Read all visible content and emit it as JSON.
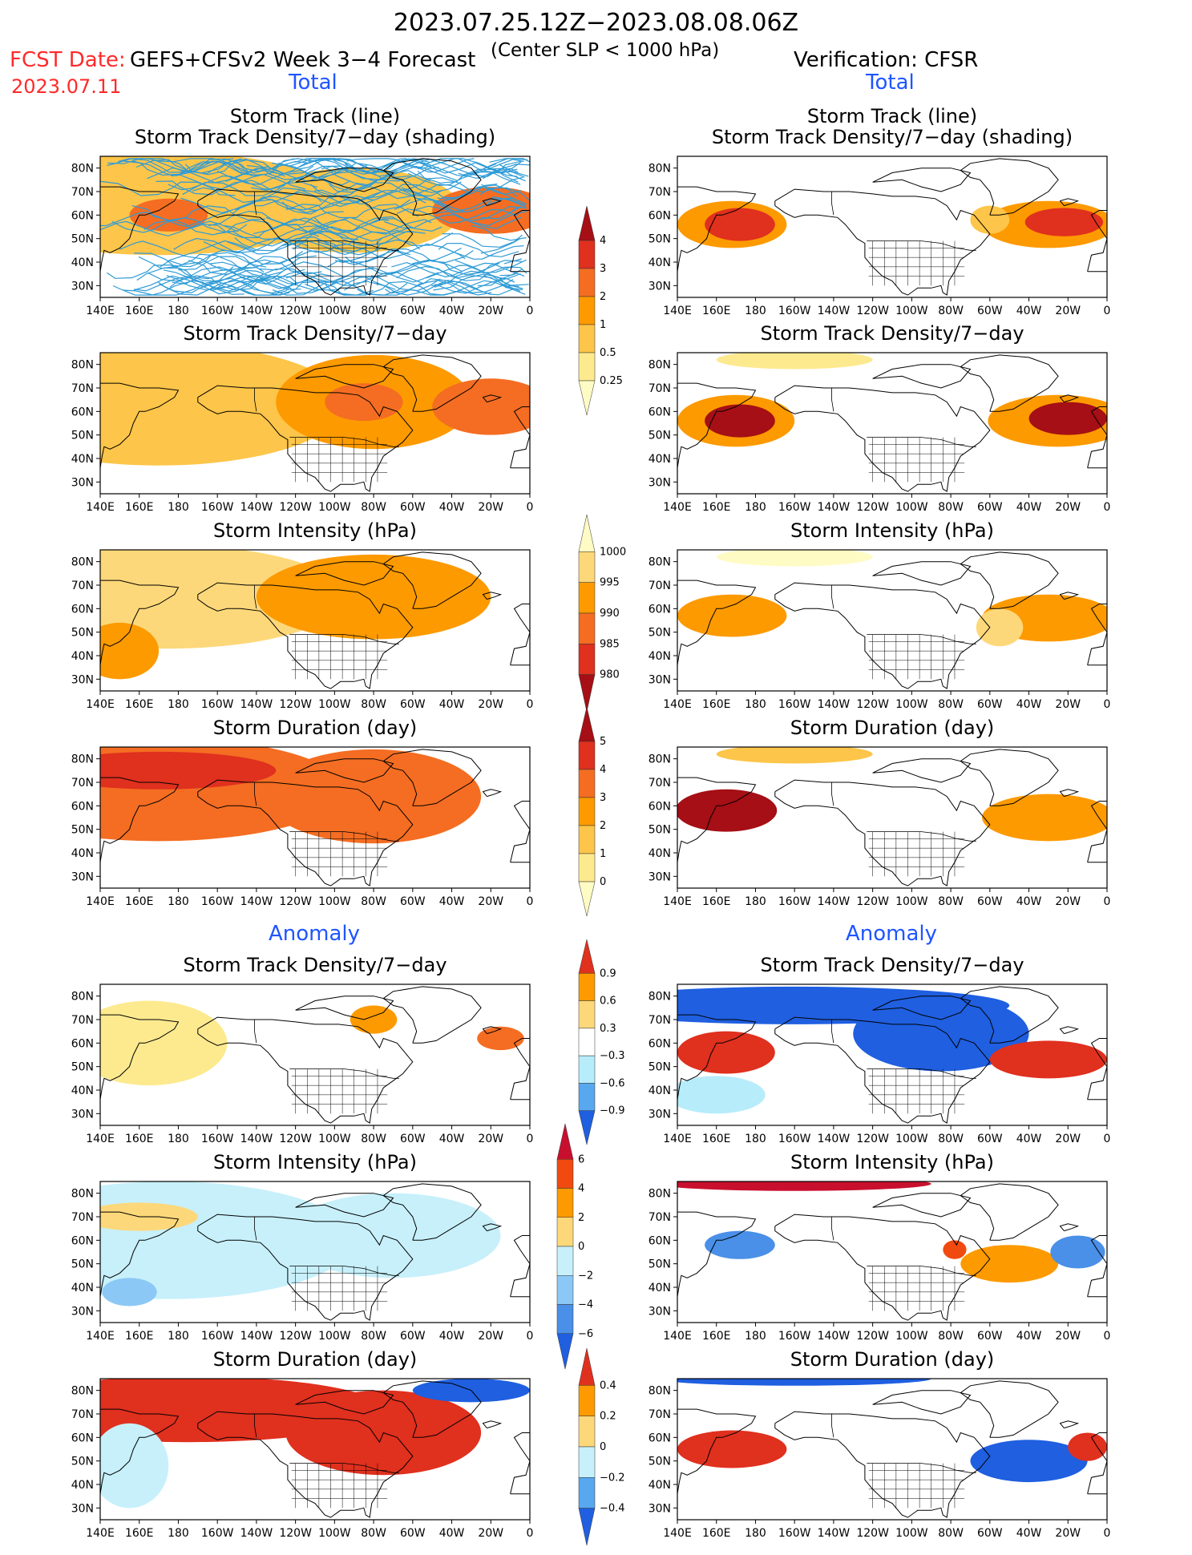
{
  "header": {
    "title": "2023.07.25.12Z−2023.08.08.06Z",
    "subtitle": "(Center SLP < 1000 hPa)",
    "fcst_label": "FCST Date:",
    "fcst_model": "GEFS+CFSv2 Week 3−4 Forecast",
    "fcst_date": "2023.07.11",
    "verification": "Verification: CFSR"
  },
  "sections": {
    "total": "Total",
    "anomaly": "Anomaly"
  },
  "axes": {
    "lon_labels": [
      "140E",
      "160E",
      "180",
      "160W",
      "140W",
      "120W",
      "100W",
      "80W",
      "60W",
      "40W",
      "20W",
      "0"
    ],
    "lat_labels": [
      "80N",
      "70N",
      "60N",
      "50N",
      "40N",
      "30N"
    ]
  },
  "colors": {
    "ocean": "#ffffff",
    "land_line": "#000000",
    "track_line": "#2e9bd6"
  },
  "colorbars": [
    {
      "id": "density-total",
      "labels": [
        "4",
        "3",
        "2",
        "1",
        "0.5",
        "0.25"
      ],
      "colors": [
        "#a50f15",
        "#e0301e",
        "#f46d22",
        "#fd9a00",
        "#fdc549",
        "#fdea8f",
        "#fffbc4"
      ]
    },
    {
      "id": "intensity-total",
      "labels": [
        "1000",
        "995",
        "990",
        "985",
        "980"
      ],
      "colors": [
        "#fffbc4",
        "#fdd87a",
        "#fd9a00",
        "#f46d22",
        "#e0301e",
        "#a50f15"
      ]
    },
    {
      "id": "duration-total",
      "labels": [
        "5",
        "4",
        "3",
        "2",
        "1",
        "0"
      ],
      "colors": [
        "#a50f15",
        "#e0301e",
        "#f46d22",
        "#fd9a00",
        "#fdc549",
        "#fdea8f",
        "#fffbc4"
      ]
    },
    {
      "id": "density-anom",
      "labels": [
        "0.9",
        "0.6",
        "0.3",
        "−0.3",
        "−0.6",
        "−0.9"
      ],
      "colors": [
        "#e0301e",
        "#fd9a00",
        "#fdd87a",
        "#ffffff",
        "#b7ecfb",
        "#58a8f0",
        "#1f5fe0"
      ]
    },
    {
      "id": "intensity-anom",
      "labels": [
        "6",
        "4",
        "2",
        "0",
        "−2",
        "−4",
        "−6"
      ],
      "colors": [
        "#c8102e",
        "#f04a10",
        "#fd9a00",
        "#fdd87a",
        "#c7f0fb",
        "#8cc8f5",
        "#4a8fe8",
        "#1f5fe0"
      ]
    },
    {
      "id": "duration-anom",
      "labels": [
        "0.4",
        "0.2",
        "0",
        "−0.2",
        "−0.4"
      ],
      "colors": [
        "#e0301e",
        "#fd9a00",
        "#fdd87a",
        "#c7f0fb",
        "#58a8f0",
        "#1f5fe0"
      ]
    }
  ],
  "panels": [
    {
      "id": "l1",
      "col": "left",
      "row": 1,
      "title1": "Storm Track (line)",
      "title2": "Storm Track Density/7−day (shading)",
      "tracks": true,
      "blobs": [
        {
          "lon": 170,
          "lat": 65,
          "rx": 95,
          "ry": 22,
          "c": "#fdc549"
        },
        {
          "lon": 270,
          "lat": 62,
          "rx": 55,
          "ry": 18,
          "c": "#fdc549"
        },
        {
          "lon": 340,
          "lat": 62,
          "rx": 30,
          "ry": 10,
          "c": "#f46d22"
        },
        {
          "lon": 175,
          "lat": 60,
          "rx": 20,
          "ry": 7,
          "c": "#f46d22"
        }
      ]
    },
    {
      "id": "r1",
      "col": "right",
      "row": 1,
      "title1": "Storm Track (line)",
      "title2": "Storm Track Density/7−day (shading)",
      "tracks": false,
      "blobs": [
        {
          "lon": 168,
          "lat": 56,
          "rx": 28,
          "ry": 10,
          "c": "#fd9a00"
        },
        {
          "lon": 172,
          "lat": 56,
          "rx": 18,
          "ry": 7,
          "c": "#e0301e"
        },
        {
          "lon": 330,
          "lat": 56,
          "rx": 34,
          "ry": 10,
          "c": "#fd9a00"
        },
        {
          "lon": 338,
          "lat": 57,
          "rx": 20,
          "ry": 6,
          "c": "#e0301e"
        },
        {
          "lon": 300,
          "lat": 58,
          "rx": 10,
          "ry": 6,
          "c": "#fdc549"
        }
      ]
    },
    {
      "id": "l2",
      "col": "left",
      "row": 2,
      "title1": "",
      "title2": "Storm Track Density/7−day",
      "tracks": false,
      "blobs": [
        {
          "lon": 170,
          "lat": 63,
          "rx": 95,
          "ry": 26,
          "c": "#fdc549"
        },
        {
          "lon": 280,
          "lat": 64,
          "rx": 50,
          "ry": 20,
          "c": "#fd9a00"
        },
        {
          "lon": 340,
          "lat": 62,
          "rx": 30,
          "ry": 12,
          "c": "#f46d22"
        },
        {
          "lon": 275,
          "lat": 64,
          "rx": 20,
          "ry": 8,
          "c": "#f46d22"
        }
      ]
    },
    {
      "id": "r2",
      "col": "right",
      "row": 2,
      "title1": "",
      "title2": "Storm Track Density/7−day",
      "tracks": false,
      "blobs": [
        {
          "lon": 170,
          "lat": 56,
          "rx": 30,
          "ry": 11,
          "c": "#fd9a00"
        },
        {
          "lon": 172,
          "lat": 56,
          "rx": 18,
          "ry": 7,
          "c": "#a50f15"
        },
        {
          "lon": 335,
          "lat": 56,
          "rx": 36,
          "ry": 11,
          "c": "#fd9a00"
        },
        {
          "lon": 340,
          "lat": 57,
          "rx": 20,
          "ry": 7,
          "c": "#a50f15"
        },
        {
          "lon": 200,
          "lat": 82,
          "rx": 40,
          "ry": 4,
          "c": "#fdea8f"
        }
      ]
    },
    {
      "id": "l3",
      "col": "left",
      "row": 3,
      "title1": "",
      "title2": "Storm Intensity (hPa)",
      "tracks": false,
      "blobs": [
        {
          "lon": 175,
          "lat": 65,
          "rx": 90,
          "ry": 22,
          "c": "#fdd87a"
        },
        {
          "lon": 280,
          "lat": 65,
          "rx": 60,
          "ry": 18,
          "c": "#fd9a00"
        },
        {
          "lon": 150,
          "lat": 42,
          "rx": 20,
          "ry": 12,
          "c": "#fd9a00"
        }
      ]
    },
    {
      "id": "r3",
      "col": "right",
      "row": 3,
      "title1": "",
      "title2": "Storm Intensity (hPa)",
      "tracks": false,
      "blobs": [
        {
          "lon": 168,
          "lat": 57,
          "rx": 28,
          "ry": 9,
          "c": "#fd9a00"
        },
        {
          "lon": 330,
          "lat": 56,
          "rx": 34,
          "ry": 10,
          "c": "#fd9a00"
        },
        {
          "lon": 305,
          "lat": 52,
          "rx": 12,
          "ry": 8,
          "c": "#fdd87a"
        },
        {
          "lon": 200,
          "lat": 82,
          "rx": 40,
          "ry": 4,
          "c": "#fffbc4"
        }
      ]
    },
    {
      "id": "l4",
      "col": "left",
      "row": 4,
      "title1": "",
      "title2": "Storm Duration (day)",
      "tracks": false,
      "blobs": [
        {
          "lon": 170,
          "lat": 67,
          "rx": 95,
          "ry": 22,
          "c": "#f46d22"
        },
        {
          "lon": 280,
          "lat": 64,
          "rx": 55,
          "ry": 20,
          "c": "#f46d22"
        },
        {
          "lon": 170,
          "lat": 75,
          "rx": 60,
          "ry": 8,
          "c": "#e0301e"
        }
      ]
    },
    {
      "id": "r4",
      "col": "right",
      "row": 4,
      "title1": "",
      "title2": "Storm Duration (day)",
      "tracks": false,
      "blobs": [
        {
          "lon": 165,
          "lat": 58,
          "rx": 26,
          "ry": 9,
          "c": "#a50f15"
        },
        {
          "lon": 330,
          "lat": 55,
          "rx": 34,
          "ry": 10,
          "c": "#fd9a00"
        },
        {
          "lon": 200,
          "lat": 82,
          "rx": 40,
          "ry": 4,
          "c": "#fdc549"
        }
      ]
    },
    {
      "id": "l5",
      "col": "left",
      "row": 5,
      "title1": "",
      "title2": "Storm Track Density/7−day",
      "tracks": false,
      "blobs": [
        {
          "lon": 280,
          "lat": 70,
          "rx": 12,
          "ry": 6,
          "c": "#fd9a00"
        },
        {
          "lon": 345,
          "lat": 62,
          "rx": 12,
          "ry": 5,
          "c": "#f46d22"
        },
        {
          "lon": 165,
          "lat": 60,
          "rx": 40,
          "ry": 18,
          "c": "#fdea8f"
        }
      ]
    },
    {
      "id": "r5",
      "col": "right",
      "row": 5,
      "title1": "",
      "title2": "Storm Track Density/7−day",
      "tracks": false,
      "blobs": [
        {
          "lon": 200,
          "lat": 76,
          "rx": 110,
          "ry": 8,
          "c": "#1f5fe0"
        },
        {
          "lon": 275,
          "lat": 64,
          "rx": 45,
          "ry": 16,
          "c": "#1f5fe0"
        },
        {
          "lon": 165,
          "lat": 56,
          "rx": 25,
          "ry": 9,
          "c": "#e0301e"
        },
        {
          "lon": 330,
          "lat": 53,
          "rx": 30,
          "ry": 8,
          "c": "#e0301e"
        },
        {
          "lon": 160,
          "lat": 38,
          "rx": 25,
          "ry": 8,
          "c": "#b7ecfb"
        }
      ]
    },
    {
      "id": "l6",
      "col": "left",
      "row": 6,
      "title1": "",
      "title2": "Storm Intensity (hPa)",
      "tracks": false,
      "blobs": [
        {
          "lon": 175,
          "lat": 60,
          "rx": 95,
          "ry": 25,
          "c": "#c7f0fb"
        },
        {
          "lon": 290,
          "lat": 62,
          "rx": 55,
          "ry": 18,
          "c": "#c7f0fb"
        },
        {
          "lon": 160,
          "lat": 70,
          "rx": 30,
          "ry": 6,
          "c": "#fdd87a"
        },
        {
          "lon": 155,
          "lat": 38,
          "rx": 14,
          "ry": 6,
          "c": "#8cc8f5"
        }
      ]
    },
    {
      "id": "r6",
      "col": "right",
      "row": 6,
      "title1": "",
      "title2": "Storm Intensity (hPa)",
      "tracks": false,
      "blobs": [
        {
          "lon": 200,
          "lat": 84,
          "rx": 70,
          "ry": 3,
          "c": "#c8102e"
        },
        {
          "lon": 172,
          "lat": 58,
          "rx": 18,
          "ry": 6,
          "c": "#4a8fe8"
        },
        {
          "lon": 310,
          "lat": 50,
          "rx": 25,
          "ry": 8,
          "c": "#fd9a00"
        },
        {
          "lon": 345,
          "lat": 55,
          "rx": 14,
          "ry": 7,
          "c": "#4a8fe8"
        },
        {
          "lon": 282,
          "lat": 56,
          "rx": 6,
          "ry": 4,
          "c": "#f04a10"
        }
      ]
    },
    {
      "id": "l7",
      "col": "left",
      "row": 7,
      "title1": "",
      "title2": "Storm Duration (day)",
      "tracks": false,
      "blobs": [
        {
          "lon": 185,
          "lat": 72,
          "rx": 100,
          "ry": 14,
          "c": "#e0301e"
        },
        {
          "lon": 285,
          "lat": 62,
          "rx": 50,
          "ry": 18,
          "c": "#e0301e"
        },
        {
          "lon": 155,
          "lat": 48,
          "rx": 20,
          "ry": 18,
          "c": "#c7f0fb"
        },
        {
          "lon": 330,
          "lat": 80,
          "rx": 30,
          "ry": 5,
          "c": "#1f5fe0"
        }
      ]
    },
    {
      "id": "r7",
      "col": "right",
      "row": 7,
      "title1": "",
      "title2": "Storm Duration (day)",
      "tracks": false,
      "blobs": [
        {
          "lon": 200,
          "lat": 85,
          "rx": 70,
          "ry": 3,
          "c": "#1f5fe0"
        },
        {
          "lon": 168,
          "lat": 55,
          "rx": 28,
          "ry": 8,
          "c": "#e0301e"
        },
        {
          "lon": 320,
          "lat": 50,
          "rx": 30,
          "ry": 9,
          "c": "#1f5fe0"
        },
        {
          "lon": 350,
          "lat": 56,
          "rx": 10,
          "ry": 6,
          "c": "#e0301e"
        }
      ]
    }
  ]
}
